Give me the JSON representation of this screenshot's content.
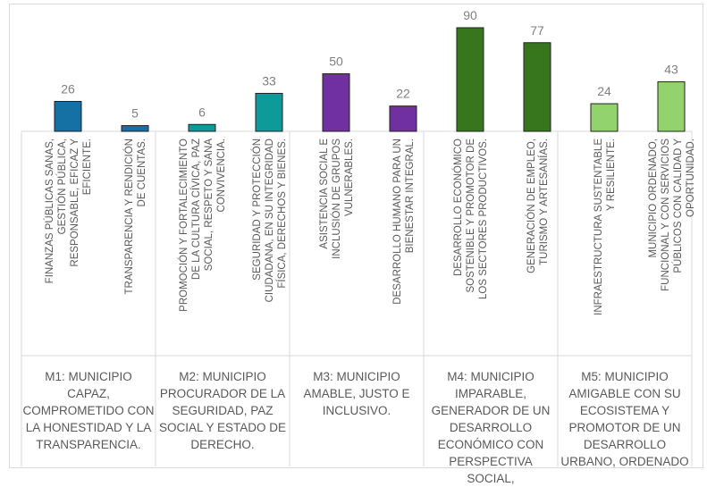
{
  "chart_data": {
    "type": "bar",
    "title": "",
    "xlabel": "",
    "ylabel": "",
    "ylim": [
      0,
      90
    ],
    "grid": false,
    "legend": "none",
    "categories": [
      "FINANZAS PÚBLICAS SANAS, GESTIÓN PÚBLICA, RESPONSABLE, EFICAZ Y EFICIENTE.",
      "TRANSPARENCIA Y RENDICIÓN DE CUENTAS.",
      "PROMOCIÓN Y FORTALECIMIENTO DE LA CULTURA CÍVICA, PAZ SOCIAL, RESPETO Y SANA CONVIVENCIA.",
      "SEGURIDAD Y PROTECCIÓN CIUDADANA, EN SU INTEGRIDAD FÍSICA, DERECHOS Y BIENES.",
      "ASISTENCIA SOCIAL E INCLUSIÓN DE GRUPOS VULNERABLES.",
      "DESARROLLO HUMANO PARA UN BIENESTAR INTEGRAL.",
      "DESARROLLO ECONÓMICO SOSTENIBLE Y PROMOTOR DE LOS SECTORES PRODUCTIVOS.",
      "GENERACIÓN DE EMPLEO, TURISMO Y ARTESANÍAS.",
      "INFRAESTRUCTURA SUSTENTABLE Y RESILIENTE.",
      "MUNICIPIO ORDENADO, FUNCIONAL Y CON SERVICIOS PÚBLICOS CON CALIDAD Y OPORTUNIDAD."
    ],
    "values": [
      26,
      5,
      6,
      33,
      50,
      22,
      90,
      77,
      24,
      43
    ],
    "bar_colors": [
      "#1570a3",
      "#1570a3",
      "#0f9a9a",
      "#0f9a9a",
      "#7030a0",
      "#7030a0",
      "#38761d",
      "#38761d",
      "#92d36e",
      "#92d36e"
    ],
    "groups": [
      {
        "label": "M1: MUNICIPIO CAPAZ, COMPROMETIDO CON LA HONESTIDAD Y LA TRANSPARENCIA.",
        "bars": [
          0,
          1
        ]
      },
      {
        "label": "M2: MUNICIPIO PROCURADOR DE LA SEGURIDAD, PAZ SOCIAL Y ESTADO DE DERECHO.",
        "bars": [
          2,
          3
        ]
      },
      {
        "label": "M3: MUNICIPIO AMABLE, JUSTO E INCLUSIVO.",
        "bars": [
          4,
          5
        ]
      },
      {
        "label": "M4: MUNICIPIO IMPARABLE, GENERADOR DE UN DESARROLLO ECONÓMICO CON PERSPECTIVA SOCIAL,",
        "bars": [
          6,
          7
        ]
      },
      {
        "label": "M5: MUNICIPIO AMIGABLE CON SU ECOSISTEMA Y PROMOTOR DE UN DESARROLLO URBANO, ORDENADO",
        "bars": [
          8,
          9
        ]
      }
    ],
    "colors": {
      "text": "#595959",
      "axis": "#d9d9d9",
      "value_label": "#7f7f7f"
    }
  }
}
